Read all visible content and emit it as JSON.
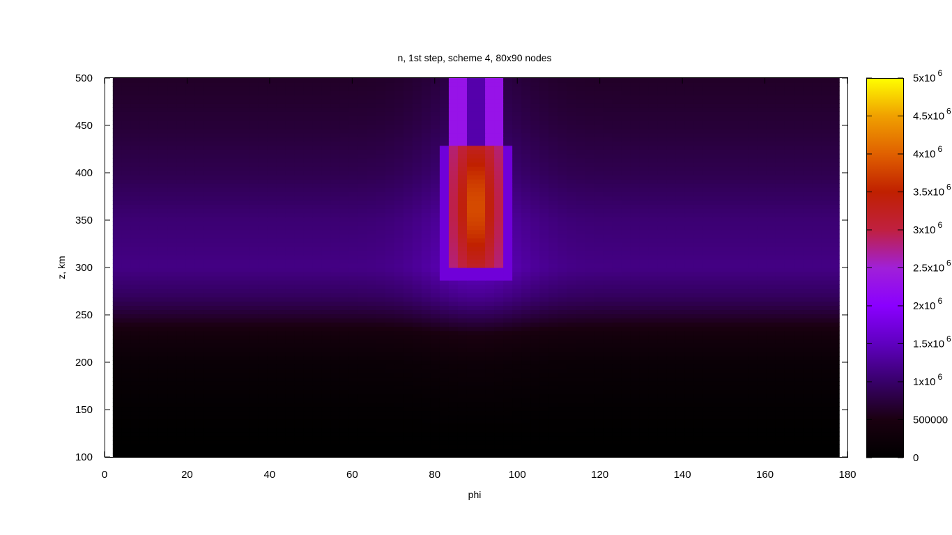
{
  "chart_data": {
    "type": "heatmap",
    "title": "n, 1st step, scheme 4, 80x90 nodes",
    "xlabel": "phi",
    "ylabel": "z, km",
    "xlim": [
      0,
      180
    ],
    "ylim": [
      100,
      500
    ],
    "data_x_range": [
      2,
      178
    ],
    "x_ticks": [
      "0",
      "20",
      "40",
      "60",
      "80",
      "100",
      "120",
      "140",
      "160",
      "180"
    ],
    "x_tick_values": [
      0,
      20,
      40,
      60,
      80,
      100,
      120,
      140,
      160,
      180
    ],
    "y_ticks": [
      "100",
      "150",
      "200",
      "250",
      "300",
      "350",
      "400",
      "450",
      "500"
    ],
    "y_tick_values": [
      100,
      150,
      200,
      250,
      300,
      350,
      400,
      450,
      500
    ],
    "grid_nodes": [
      80,
      90
    ],
    "colorbar": {
      "range": [
        0,
        5000000
      ],
      "palette": "black-blue-violet-red-orange-yellow",
      "stops": [
        "#000000",
        "#1a0010",
        "#38006a",
        "#5f00c0",
        "#8a00ff",
        "#a020d8",
        "#c02040",
        "#c02000",
        "#e06000",
        "#f0a000",
        "#ffff00"
      ],
      "ticks": [
        {
          "value": 0,
          "label": "0",
          "exp": ""
        },
        {
          "value": 500000,
          "label": "500000",
          "exp": ""
        },
        {
          "value": 1000000,
          "label": "1x10",
          "exp": "6"
        },
        {
          "value": 1500000,
          "label": "1.5x10",
          "exp": "6"
        },
        {
          "value": 2000000,
          "label": "2x10",
          "exp": "6"
        },
        {
          "value": 2500000,
          "label": "2.5x10",
          "exp": "6"
        },
        {
          "value": 3000000,
          "label": "3x10",
          "exp": "6"
        },
        {
          "value": 3500000,
          "label": "3.5x10",
          "exp": "6"
        },
        {
          "value": 4000000,
          "label": "4x10",
          "exp": "6"
        },
        {
          "value": 4500000,
          "label": "4.5x10",
          "exp": "6"
        },
        {
          "value": 5000000,
          "label": "5x10",
          "exp": "6"
        }
      ]
    },
    "field_profile": {
      "z_profile": [
        {
          "z": 100,
          "n": 0
        },
        {
          "z": 120,
          "n": 15000
        },
        {
          "z": 150,
          "n": 60000
        },
        {
          "z": 200,
          "n": 190000
        },
        {
          "z": 230,
          "n": 380000
        },
        {
          "z": 250,
          "n": 680000
        },
        {
          "z": 270,
          "n": 930000
        },
        {
          "z": 300,
          "n": 1150000
        },
        {
          "z": 350,
          "n": 1050000
        },
        {
          "z": 400,
          "n": 850000
        },
        {
          "z": 450,
          "n": 720000
        },
        {
          "z": 500,
          "n": 630000
        }
      ],
      "phi_broad_enhancement": {
        "center": 90,
        "width": 14,
        "factor": 0.32
      },
      "column_peak": {
        "phi_range": [
          84,
          96
        ],
        "z_range": [
          300,
          430
        ],
        "peak_z": 365,
        "peak_n": 3900000,
        "edge_n": 2700000
      },
      "column_upper_edges": {
        "phi": [
          86,
          94
        ],
        "z_range": [
          300,
          500
        ],
        "n": 2300000
      },
      "column_upper_core": {
        "phi_range": [
          88,
          92
        ],
        "z_range": [
          430,
          500
        ],
        "n": 1250000
      }
    }
  }
}
